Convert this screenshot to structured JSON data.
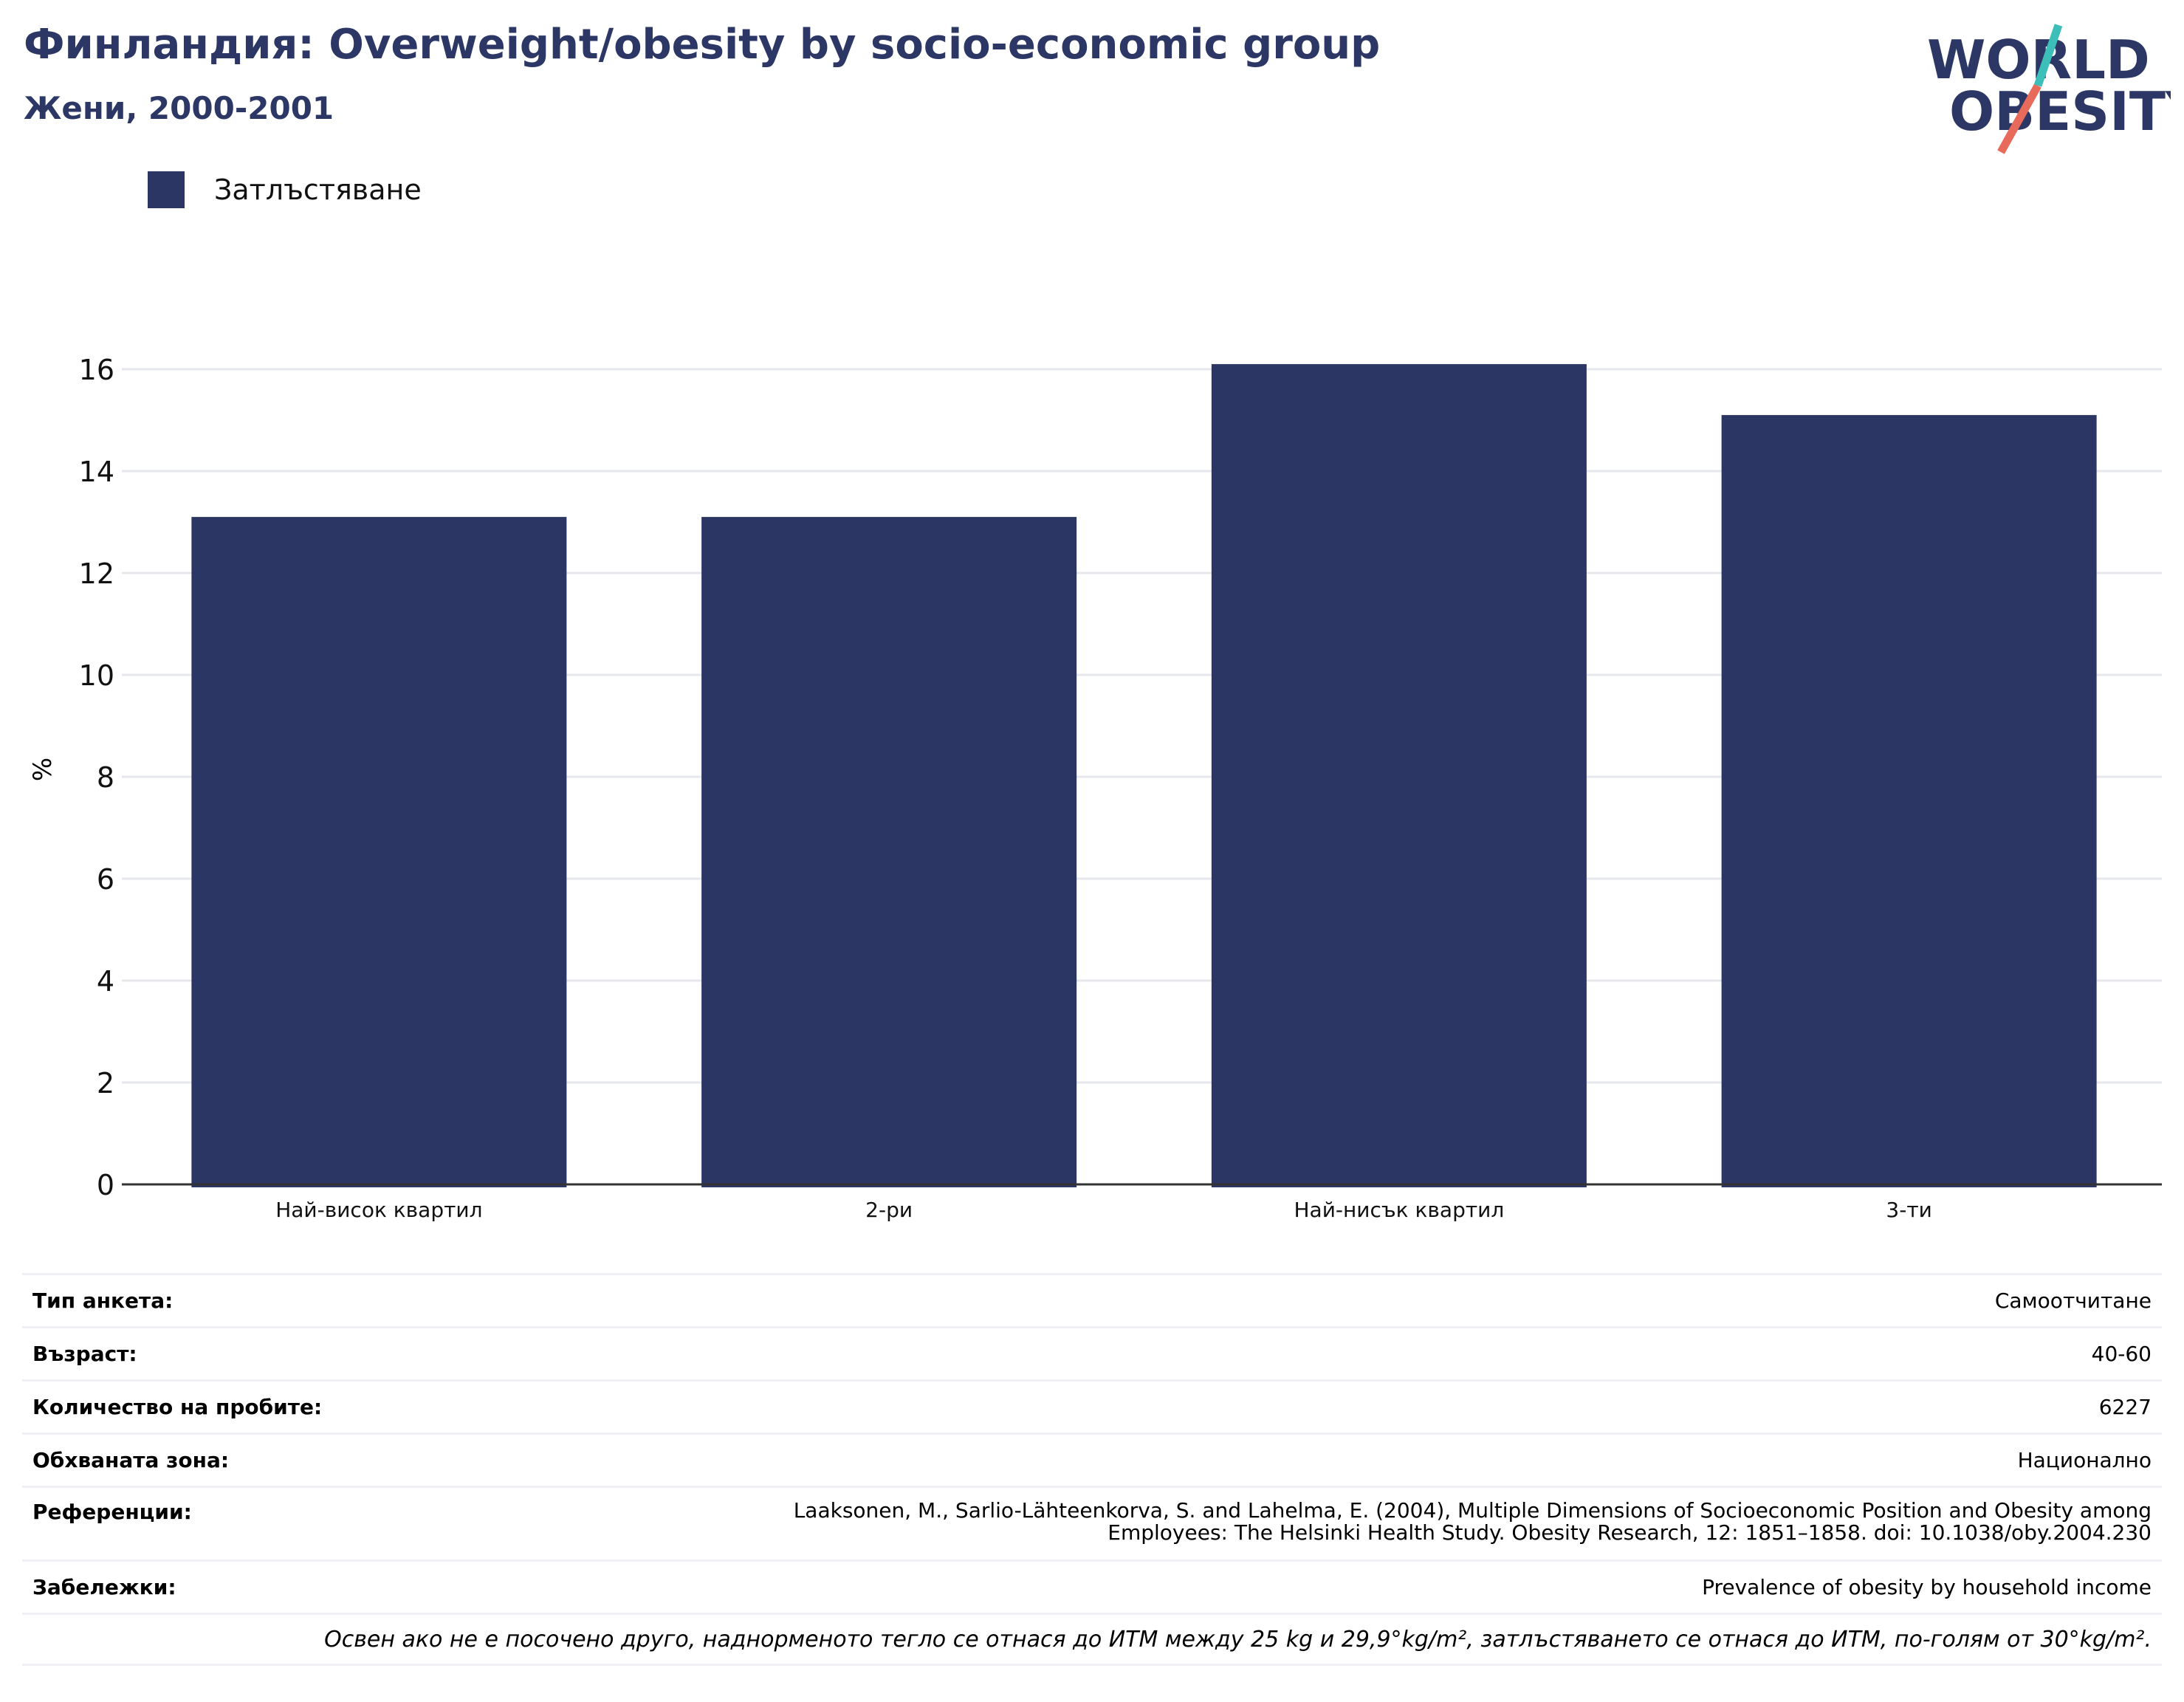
{
  "header": {
    "title": "Финландия: Overweight/obesity by socio-economic group",
    "subtitle": "Жени, 2000-2001"
  },
  "logo": {
    "line1": "WORLD",
    "line2": "OBESITY",
    "colors": {
      "text": "#2c3765",
      "teal": "#3bbfb8",
      "coral": "#e86a5a"
    }
  },
  "legend": {
    "items": [
      {
        "label": "Затлъстяване",
        "color": "#2b3664"
      }
    ]
  },
  "chart_data": {
    "type": "bar",
    "categories": [
      "Най-висок квартил",
      "2-ри",
      "Най-нисък квартил",
      "3-ти"
    ],
    "series": [
      {
        "name": "Затлъстяване",
        "values": [
          13.1,
          13.1,
          16.1,
          15.1
        ],
        "color": "#2b3664"
      }
    ],
    "ylabel": "%",
    "ylim": [
      0,
      16.5
    ],
    "yticks": [
      0,
      2,
      4,
      6,
      8,
      10,
      12,
      14,
      16
    ],
    "grid": true
  },
  "info": {
    "rows": [
      {
        "key": "Тип анкета:",
        "value": "Самоотчитане"
      },
      {
        "key": "Възраст:",
        "value": "40-60"
      },
      {
        "key": "Количество на пробите:",
        "value": "6227"
      },
      {
        "key": "Обхваната зона:",
        "value": "Национално"
      },
      {
        "key": "Референции:",
        "value": "Laaksonen, M., Sarlio-Lähteenkorva, S. and Lahelma, E. (2004), Multiple Dimensions of Socioeconomic Position and Obesity among\nEmployees: The Helsinki Health Study. Obesity Research, 12: 1851–1858. doi: 10.1038/oby.2004.230"
      },
      {
        "key": "Забележки:",
        "value": "Prevalence of obesity by household income"
      }
    ],
    "note": "Освен ако не е посочено друго, наднорменото тегло се отнася до ИТМ между 25 kg и 29,9°kg/m², затлъстяването се отнася до ИТМ, по-голям от 30°kg/m²."
  }
}
